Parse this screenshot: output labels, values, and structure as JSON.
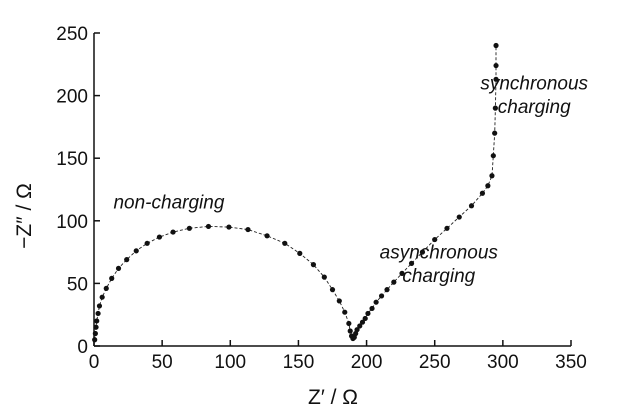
{
  "chart_data": {
    "type": "scatter",
    "title": "",
    "xlabel": "Z′ / Ω",
    "ylabel": "−Z″ / Ω",
    "xlim": [
      0,
      350
    ],
    "ylim": [
      0,
      250
    ],
    "x_ticks": [
      0,
      50,
      100,
      150,
      200,
      250,
      300,
      350
    ],
    "y_ticks": [
      0,
      50,
      100,
      150,
      200,
      250
    ],
    "grid": false,
    "legend": "none",
    "annotations": [
      {
        "text": "non-charging",
        "x": 55,
        "y": 110
      },
      {
        "text": "asynchronous",
        "x": 253,
        "y": 70
      },
      {
        "text": "charging",
        "x": 253,
        "y": 51
      },
      {
        "text": "synchronous",
        "x": 323,
        "y": 205
      },
      {
        "text": "charging",
        "x": 323,
        "y": 186
      }
    ],
    "series": [
      {
        "x": [
          0.5,
          1,
          1.5,
          2,
          3,
          4,
          6,
          9,
          13,
          18,
          24,
          31,
          39,
          48,
          58,
          70,
          84,
          99,
          113,
          127,
          140,
          151,
          161,
          169,
          175,
          180,
          184,
          187,
          188,
          189,
          190,
          191,
          192,
          193,
          195,
          197,
          199,
          201,
          204,
          207,
          211,
          215,
          220,
          226,
          233,
          241,
          250,
          259,
          268,
          277,
          285,
          289,
          292,
          293,
          294,
          294.5,
          295,
          295,
          295
        ],
        "y": [
          5,
          10,
          15,
          20,
          26,
          32,
          39,
          46,
          54,
          62,
          69,
          76,
          82,
          87,
          91,
          94,
          95.5,
          95,
          93,
          88,
          82,
          74,
          65,
          55,
          45,
          36,
          27,
          18,
          12,
          8,
          6,
          7,
          10,
          13,
          16,
          19,
          22,
          26,
          30,
          35,
          40,
          45,
          51,
          58,
          66,
          75,
          85,
          94,
          103,
          112,
          122,
          128,
          136,
          152,
          170,
          190,
          213,
          224,
          240
        ]
      }
    ],
    "colors": {
      "points": "#111111",
      "axes": "#111111"
    }
  }
}
